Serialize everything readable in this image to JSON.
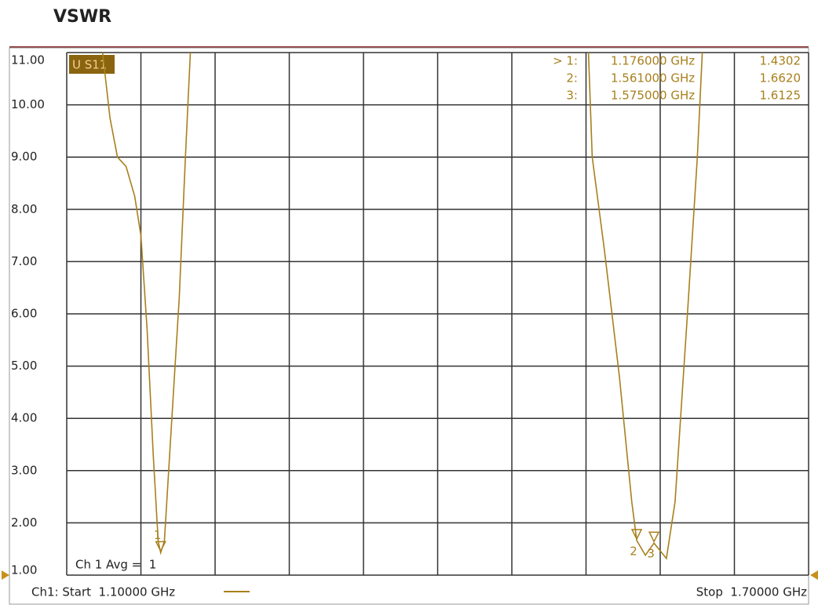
{
  "chart_data": {
    "type": "line",
    "title": "VSWR",
    "trace_label": "U S11",
    "avg_label": "Ch 1 Avg =  1",
    "start_label": "Ch1: Start  1.10000 GHz",
    "stop_label": "Stop  1.70000 GHz",
    "xlim": [
      1.1,
      1.7
    ],
    "xticks": [
      1.1,
      1.16,
      1.22,
      1.28,
      1.34,
      1.4,
      1.46,
      1.52,
      1.58,
      1.64,
      1.7
    ],
    "ylim": [
      1,
      11
    ],
    "yticks": [
      {
        "value": 11,
        "label": "11.00"
      },
      {
        "value": 10,
        "label": "10.00"
      },
      {
        "value": 9,
        "label": "9.00"
      },
      {
        "value": 8,
        "label": "8.00"
      },
      {
        "value": 7,
        "label": "7.00"
      },
      {
        "value": 6,
        "label": "6.00"
      },
      {
        "value": 5,
        "label": "5.00"
      },
      {
        "value": 4,
        "label": "4.00"
      },
      {
        "value": 3,
        "label": "3.00"
      },
      {
        "value": 2,
        "label": "2.00"
      },
      {
        "value": 1,
        "label": "1.00"
      }
    ],
    "grid": true,
    "series": [
      {
        "name": "S11",
        "color": "#a8801c",
        "x": [
          1.129,
          1.135,
          1.141,
          1.148,
          1.155,
          1.16,
          1.165,
          1.17,
          1.174,
          1.176,
          1.179,
          1.184,
          1.191,
          1.196,
          1.2,
          null,
          1.522,
          1.525,
          1.535,
          1.547,
          1.557,
          1.561,
          1.568,
          1.575,
          1.585,
          1.592,
          1.602,
          1.61,
          1.614
        ],
        "values": [
          11.0,
          9.75,
          9.0,
          8.82,
          8.25,
          7.5,
          5.7,
          3.3,
          1.65,
          1.43,
          1.65,
          3.6,
          6.3,
          9.0,
          11.0,
          null,
          11.0,
          9.0,
          7.2,
          4.8,
          2.4,
          1.662,
          1.38,
          1.6125,
          1.32,
          2.4,
          6.0,
          9.0,
          11.0
        ]
      }
    ],
    "markers": [
      {
        "id": "1",
        "prefix": "> 1:",
        "freq": 1.176,
        "freq_label": "1.176000 GHz",
        "value": 1.4302,
        "value_label": "1.4302"
      },
      {
        "id": "2",
        "prefix": "2:",
        "freq": 1.561,
        "freq_label": "1.561000 GHz",
        "value": 1.662,
        "value_label": "1.6620"
      },
      {
        "id": "3",
        "prefix": "3:",
        "freq": 1.575,
        "freq_label": "1.575000 GHz",
        "value": 1.6125,
        "value_label": "1.6125"
      }
    ]
  }
}
